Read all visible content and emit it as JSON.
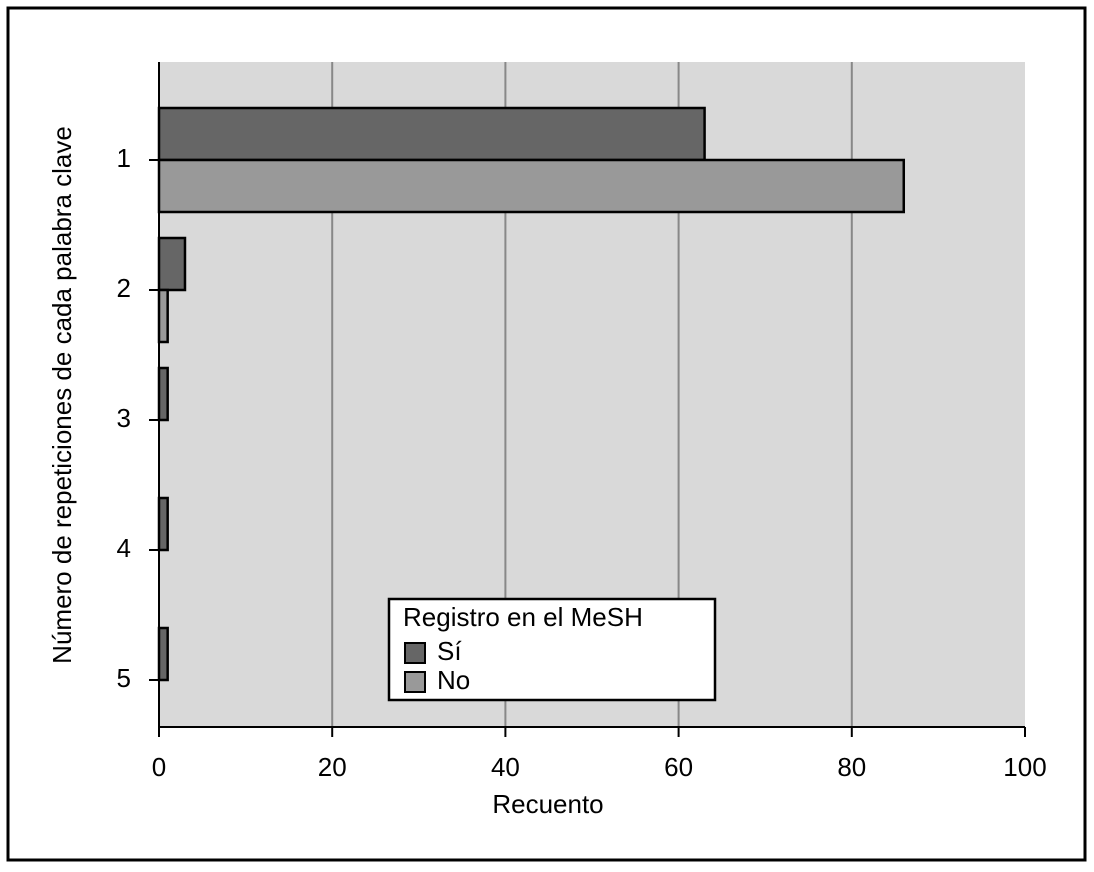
{
  "chart_data": {
    "type": "hbar",
    "xlabel": "Recuento",
    "ylabel": "Número de repeticiones de cada palabra clave",
    "categories": [
      "1",
      "2",
      "3",
      "4",
      "5"
    ],
    "series": [
      {
        "name": "Sí",
        "color": "#666666",
        "values": [
          63,
          3,
          1,
          1,
          1
        ]
      },
      {
        "name": "No",
        "color": "#999999",
        "values": [
          86,
          1,
          0,
          0,
          0
        ]
      }
    ],
    "xlim": [
      0,
      100
    ],
    "xticks": [
      0,
      20,
      40,
      60,
      80,
      100
    ],
    "grid": true,
    "plot_background": "#d9d9d9",
    "legend_title": "Registro en el MeSH",
    "legend_loc": "lower center"
  }
}
